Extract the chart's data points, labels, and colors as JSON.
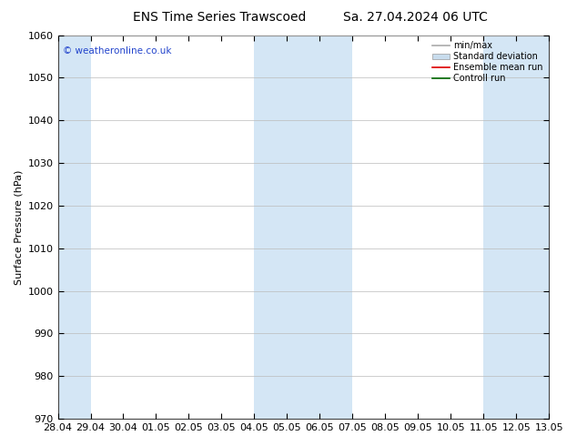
{
  "title_left": "ENS Time Series Trawscoed",
  "title_right": "Sa. 27.04.2024 06 UTC",
  "ylabel": "Surface Pressure (hPa)",
  "ylim": [
    970,
    1060
  ],
  "yticks": [
    970,
    980,
    990,
    1000,
    1010,
    1020,
    1030,
    1040,
    1050,
    1060
  ],
  "xtick_labels": [
    "28.04",
    "29.04",
    "30.04",
    "01.05",
    "02.05",
    "03.05",
    "04.05",
    "05.05",
    "06.05",
    "07.05",
    "08.05",
    "09.05",
    "10.05",
    "11.05",
    "12.05",
    "13.05"
  ],
  "watermark": "© weatheronline.co.uk",
  "background_color": "#ffffff",
  "plot_bg_color": "#ffffff",
  "band_color": "#d4e6f5",
  "legend_labels": [
    "min/max",
    "Standard deviation",
    "Ensemble mean run",
    "Controll run"
  ],
  "legend_line_color": "#aaaaaa",
  "legend_band_color": "#c8dced",
  "legend_mean_color": "#dd0000",
  "legend_ctrl_color": "#006600",
  "title_fontsize": 10,
  "axis_fontsize": 8,
  "watermark_color": "#2244cc",
  "band_positions": [
    0,
    3,
    4,
    5,
    10,
    11,
    12,
    13,
    14,
    15
  ],
  "band_alpha": 1.0
}
